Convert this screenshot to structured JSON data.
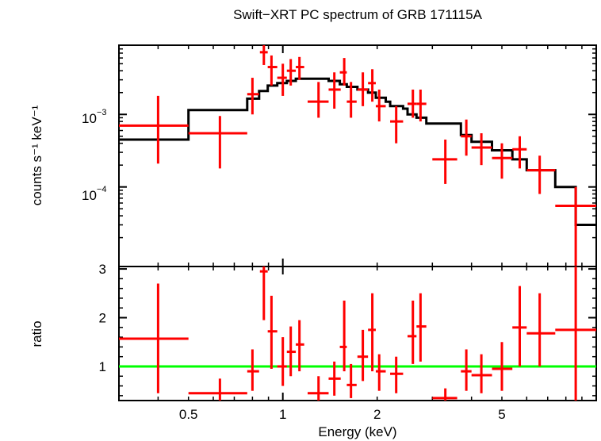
{
  "chart_data": [
    {
      "type": "line",
      "title": "Swift−XRT PC spectrum of GRB 171115A",
      "ylabel": "counts s⁻¹ keV⁻¹",
      "xlabel": "",
      "x_scale": "log",
      "y_scale": "log",
      "xlim": [
        0.3,
        10
      ],
      "ylim": [
        8e-06,
        0.009
      ],
      "y_tick_labels": [
        {
          "value": 0.001,
          "mantissa": "10",
          "exponent": "−3"
        },
        {
          "value": 0.0001,
          "mantissa": "10",
          "exponent": "−4"
        }
      ],
      "series": [
        {
          "kind": "data",
          "color": "#ff0000",
          "points": [
            {
              "x": 0.4,
              "xlo": 0.3,
              "xhi": 0.5,
              "y": 0.0007,
              "ylo": 0.00021,
              "yhi": 0.0018
            },
            {
              "x": 0.63,
              "xlo": 0.5,
              "xhi": 0.77,
              "y": 0.00055,
              "ylo": 0.00018,
              "yhi": 0.00095
            },
            {
              "x": 0.8,
              "xlo": 0.77,
              "xhi": 0.84,
              "y": 0.0019,
              "ylo": 0.001,
              "yhi": 0.0032
            },
            {
              "x": 0.87,
              "xlo": 0.845,
              "xhi": 0.895,
              "y": 0.0072,
              "ylo": 0.0048,
              "yhi": 0.009
            },
            {
              "x": 0.92,
              "xlo": 0.895,
              "xhi": 0.96,
              "y": 0.0045,
              "ylo": 0.0025,
              "yhi": 0.0065
            },
            {
              "x": 1.0,
              "xlo": 0.96,
              "xhi": 1.03,
              "y": 0.0032,
              "ylo": 0.0018,
              "yhi": 0.005
            },
            {
              "x": 1.06,
              "xlo": 1.03,
              "xhi": 1.1,
              "y": 0.004,
              "ylo": 0.0025,
              "yhi": 0.0058
            },
            {
              "x": 1.13,
              "xlo": 1.1,
              "xhi": 1.17,
              "y": 0.0045,
              "ylo": 0.003,
              "yhi": 0.0062
            },
            {
              "x": 1.3,
              "xlo": 1.2,
              "xhi": 1.4,
              "y": 0.0015,
              "ylo": 0.0009,
              "yhi": 0.0028
            },
            {
              "x": 1.46,
              "xlo": 1.4,
              "xhi": 1.53,
              "y": 0.0022,
              "ylo": 0.0012,
              "yhi": 0.0038
            },
            {
              "x": 1.57,
              "xlo": 1.52,
              "xhi": 1.6,
              "y": 0.0038,
              "ylo": 0.0025,
              "yhi": 0.006
            },
            {
              "x": 1.65,
              "xlo": 1.6,
              "xhi": 1.72,
              "y": 0.0015,
              "ylo": 0.0009,
              "yhi": 0.0028
            },
            {
              "x": 1.8,
              "xlo": 1.73,
              "xhi": 1.87,
              "y": 0.0022,
              "ylo": 0.0013,
              "yhi": 0.0038
            },
            {
              "x": 1.93,
              "xlo": 1.87,
              "xhi": 1.98,
              "y": 0.0027,
              "ylo": 0.0015,
              "yhi": 0.0042
            },
            {
              "x": 2.03,
              "xlo": 1.98,
              "xhi": 2.13,
              "y": 0.0013,
              "ylo": 0.0008,
              "yhi": 0.0022
            },
            {
              "x": 2.3,
              "xlo": 2.2,
              "xhi": 2.42,
              "y": 0.0008,
              "ylo": 0.0004,
              "yhi": 0.0013
            },
            {
              "x": 2.6,
              "xlo": 2.5,
              "xhi": 2.67,
              "y": 0.0014,
              "ylo": 0.0009,
              "yhi": 0.0022
            },
            {
              "x": 2.75,
              "xlo": 2.67,
              "xhi": 2.87,
              "y": 0.0014,
              "ylo": 0.0008,
              "yhi": 0.0022
            },
            {
              "x": 3.3,
              "xlo": 3.0,
              "xhi": 3.6,
              "y": 0.00024,
              "ylo": 0.00011,
              "yhi": 0.00045
            },
            {
              "x": 3.85,
              "xlo": 3.7,
              "xhi": 4.0,
              "y": 0.0005,
              "ylo": 0.00027,
              "yhi": 0.00085
            },
            {
              "x": 4.3,
              "xlo": 4.0,
              "xhi": 4.65,
              "y": 0.00035,
              "ylo": 0.0002,
              "yhi": 0.00055
            },
            {
              "x": 5.0,
              "xlo": 4.65,
              "xhi": 5.4,
              "y": 0.00025,
              "ylo": 0.00013,
              "yhi": 0.0004
            },
            {
              "x": 5.7,
              "xlo": 5.4,
              "xhi": 6.0,
              "y": 0.00033,
              "ylo": 0.00018,
              "yhi": 0.0005
            },
            {
              "x": 6.6,
              "xlo": 6.0,
              "xhi": 7.4,
              "y": 0.00017,
              "ylo": 8e-05,
              "yhi": 0.00027
            },
            {
              "x": 8.6,
              "xlo": 7.4,
              "xhi": 10.0,
              "y": 5.5e-05,
              "ylo": 8e-06,
              "yhi": 0.0001
            }
          ]
        },
        {
          "kind": "model",
          "color": "#000000",
          "step_edges": [
            0.3,
            0.5,
            0.77,
            0.84,
            0.895,
            0.96,
            1.03,
            1.1,
            1.2,
            1.4,
            1.52,
            1.6,
            1.73,
            1.87,
            1.98,
            2.13,
            2.2,
            2.42,
            2.5,
            2.67,
            2.87,
            3.7,
            4.0,
            4.65,
            5.4,
            6.0,
            7.4,
            8.6,
            10.0
          ],
          "step_values": [
            0.00045,
            0.00115,
            0.00165,
            0.0021,
            0.0025,
            0.0027,
            0.0029,
            0.0031,
            0.0031,
            0.0029,
            0.0026,
            0.0024,
            0.0022,
            0.002,
            0.0017,
            0.0015,
            0.0013,
            0.0012,
            0.001,
            0.0009,
            0.00075,
            0.00052,
            0.00042,
            0.00032,
            0.00024,
            0.00017,
            0.0001,
            3e-05
          ]
        }
      ]
    },
    {
      "type": "line",
      "title": "",
      "xlabel": "Energy (keV)",
      "ylabel": "ratio",
      "x_scale": "log",
      "y_scale": "linear",
      "xlim": [
        0.3,
        10
      ],
      "ylim": [
        0.3,
        3.05
      ],
      "y_ticks": [
        1,
        2,
        3
      ],
      "y_tick_labels": [
        "1",
        "2",
        "3"
      ],
      "x_ticks": [
        0.5,
        1,
        2,
        5
      ],
      "x_tick_labels": [
        "0.5",
        "1",
        "2",
        "5"
      ],
      "reference_line": {
        "y": 1,
        "color": "#00ff00"
      },
      "series": [
        {
          "kind": "ratio",
          "color": "#ff0000",
          "points": [
            {
              "x": 0.4,
              "xlo": 0.3,
              "xhi": 0.5,
              "y": 1.57,
              "ylo": 0.45,
              "yhi": 2.7
            },
            {
              "x": 0.63,
              "xlo": 0.5,
              "xhi": 0.77,
              "y": 0.45,
              "ylo": 0.3,
              "yhi": 0.75
            },
            {
              "x": 0.8,
              "xlo": 0.77,
              "xhi": 0.84,
              "y": 0.9,
              "ylo": 0.5,
              "yhi": 1.35
            },
            {
              "x": 0.87,
              "xlo": 0.845,
              "xhi": 0.895,
              "y": 2.95,
              "ylo": 1.95,
              "yhi": 3.05
            },
            {
              "x": 0.92,
              "xlo": 0.895,
              "xhi": 0.96,
              "y": 1.72,
              "ylo": 0.95,
              "yhi": 2.45
            },
            {
              "x": 1.0,
              "xlo": 0.96,
              "xhi": 1.03,
              "y": 1.0,
              "ylo": 0.6,
              "yhi": 1.6
            },
            {
              "x": 1.06,
              "xlo": 1.03,
              "xhi": 1.1,
              "y": 1.3,
              "ylo": 0.8,
              "yhi": 1.82
            },
            {
              "x": 1.13,
              "xlo": 1.1,
              "xhi": 1.17,
              "y": 1.45,
              "ylo": 0.9,
              "yhi": 1.95
            },
            {
              "x": 1.3,
              "xlo": 1.2,
              "xhi": 1.4,
              "y": 0.45,
              "ylo": 0.3,
              "yhi": 0.8
            },
            {
              "x": 1.46,
              "xlo": 1.4,
              "xhi": 1.53,
              "y": 0.75,
              "ylo": 0.4,
              "yhi": 1.1
            },
            {
              "x": 1.57,
              "xlo": 1.52,
              "xhi": 1.6,
              "y": 1.4,
              "ylo": 0.9,
              "yhi": 2.35
            },
            {
              "x": 1.65,
              "xlo": 1.6,
              "xhi": 1.72,
              "y": 0.62,
              "ylo": 0.35,
              "yhi": 1.05
            },
            {
              "x": 1.8,
              "xlo": 1.73,
              "xhi": 1.87,
              "y": 1.2,
              "ylo": 0.7,
              "yhi": 1.75
            },
            {
              "x": 1.93,
              "xlo": 1.87,
              "xhi": 1.98,
              "y": 1.75,
              "ylo": 0.9,
              "yhi": 2.5
            },
            {
              "x": 2.03,
              "xlo": 1.98,
              "xhi": 2.13,
              "y": 0.9,
              "ylo": 0.5,
              "yhi": 1.25
            },
            {
              "x": 2.3,
              "xlo": 2.2,
              "xhi": 2.42,
              "y": 0.85,
              "ylo": 0.45,
              "yhi": 1.2
            },
            {
              "x": 2.6,
              "xlo": 2.5,
              "xhi": 2.67,
              "y": 1.62,
              "ylo": 1.05,
              "yhi": 2.35
            },
            {
              "x": 2.75,
              "xlo": 2.67,
              "xhi": 2.87,
              "y": 1.82,
              "ylo": 1.1,
              "yhi": 2.5
            },
            {
              "x": 3.3,
              "xlo": 3.0,
              "xhi": 3.6,
              "y": 0.35,
              "ylo": 0.3,
              "yhi": 0.55
            },
            {
              "x": 3.85,
              "xlo": 3.7,
              "xhi": 4.0,
              "y": 0.9,
              "ylo": 0.5,
              "yhi": 1.35
            },
            {
              "x": 4.3,
              "xlo": 4.0,
              "xhi": 4.65,
              "y": 0.82,
              "ylo": 0.45,
              "yhi": 1.25
            },
            {
              "x": 5.0,
              "xlo": 4.65,
              "xhi": 5.4,
              "y": 0.95,
              "ylo": 0.5,
              "yhi": 1.5
            },
            {
              "x": 5.7,
              "xlo": 5.4,
              "xhi": 6.0,
              "y": 1.8,
              "ylo": 1.0,
              "yhi": 2.65
            },
            {
              "x": 6.6,
              "xlo": 6.0,
              "xhi": 7.4,
              "y": 1.68,
              "ylo": 1.0,
              "yhi": 2.5
            },
            {
              "x": 8.6,
              "xlo": 7.4,
              "xhi": 10.0,
              "y": 1.75,
              "ylo": 0.3,
              "yhi": 3.05
            }
          ]
        }
      ]
    }
  ]
}
